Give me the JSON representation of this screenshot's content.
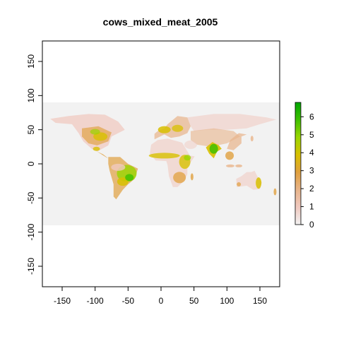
{
  "title": "cows_mixed_meat_2005",
  "colors": {
    "ocean": "#f2f2f2",
    "frame": "#000000",
    "ramp": [
      "#f2f2f2",
      "#f0c9c0",
      "#e8b48a",
      "#e0a03e",
      "#d8c000",
      "#9ad600",
      "#3fc000",
      "#00a600"
    ]
  },
  "chart_data": {
    "type": "heatmap",
    "title": "cows_mixed_meat_2005",
    "xlabel": "",
    "ylabel": "",
    "xlim": [
      -180,
      180
    ],
    "ylim": [
      -180,
      180
    ],
    "raster_extent": {
      "x": [
        -180,
        180
      ],
      "y": [
        -90,
        90
      ]
    },
    "x_ticks": [
      "-150",
      "-100",
      "-50",
      "0",
      "50",
      "100",
      "150"
    ],
    "y_ticks": [
      "150",
      "100",
      "50",
      "0",
      "-50",
      "-100",
      "-150"
    ],
    "legend": {
      "position": "right",
      "range": [
        0,
        6.8
      ],
      "tick_labels": [
        "6",
        "5",
        "4",
        "3",
        "2",
        "1",
        "0"
      ]
    }
  }
}
